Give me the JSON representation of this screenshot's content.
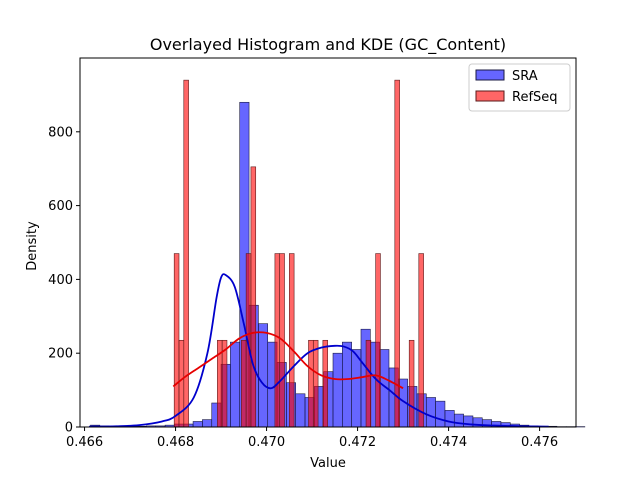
{
  "chart_data": {
    "type": "bar",
    "title": "Overlayed Histogram and KDE (GC_Content)",
    "xlabel": "Value",
    "ylabel": "Density",
    "xlim": [
      0.4659,
      0.4768
    ],
    "ylim": [
      0,
      1000
    ],
    "x_ticks": [
      "0.466",
      "0.468",
      "0.470",
      "0.472",
      "0.474",
      "0.476"
    ],
    "x_tick_values": [
      0.466,
      0.468,
      0.47,
      0.472,
      0.474,
      0.476
    ],
    "y_ticks": [
      "0",
      "200",
      "400",
      "600",
      "800"
    ],
    "y_tick_values": [
      0,
      200,
      400,
      600,
      800
    ],
    "grid": false,
    "legend_position": "top-right",
    "series": [
      {
        "name": "SRA",
        "kind": "histogram",
        "color": "#0000ff",
        "bin_start": 0.46613,
        "bin_width": 0.000205,
        "values": [
          5,
          3,
          2,
          2,
          2,
          2,
          3,
          3,
          5,
          8,
          8,
          15,
          20,
          65,
          170,
          230,
          880,
          330,
          280,
          230,
          175,
          120,
          90,
          80,
          110,
          150,
          200,
          230,
          210,
          265,
          230,
          210,
          160,
          130,
          110,
          90,
          80,
          70,
          45,
          35,
          30,
          25,
          20,
          15,
          12,
          8,
          5,
          3,
          2,
          2,
          1,
          1,
          1
        ]
      },
      {
        "name": "RefSeq",
        "kind": "histogram",
        "color": "#ff0000",
        "bin_start": 0.46797,
        "bin_width": 0.0001054,
        "values": [
          470,
          235,
          940,
          0,
          0,
          0,
          0,
          0,
          0,
          235,
          235,
          0,
          0,
          0,
          235,
          470,
          705,
          0,
          0,
          0,
          0,
          470,
          470,
          0,
          470,
          0,
          0,
          0,
          235,
          235,
          0,
          235,
          0,
          0,
          0,
          0,
          0,
          0,
          0,
          0,
          235,
          0,
          470,
          0,
          0,
          0,
          940,
          0,
          0,
          235,
          0,
          470
        ]
      },
      {
        "name": "SRA KDE",
        "kind": "kde",
        "color": "#0000cc",
        "x": [
          0.4661,
          0.4667,
          0.4672,
          0.4677,
          0.468,
          0.4684,
          0.4687,
          0.4689,
          0.469,
          0.4691,
          0.4693,
          0.4695,
          0.4697,
          0.4699,
          0.4701,
          0.4703,
          0.4706,
          0.4709,
          0.4712,
          0.4715,
          0.4717,
          0.4719,
          0.4721,
          0.4724,
          0.4727,
          0.473,
          0.4735,
          0.474,
          0.4745,
          0.475,
          0.4756,
          0.4762
        ],
        "y": [
          1,
          2,
          5,
          15,
          30,
          80,
          200,
          350,
          405,
          412,
          380,
          280,
          170,
          120,
          105,
          125,
          165,
          200,
          215,
          220,
          218,
          205,
          175,
          130,
          100,
          70,
          35,
          15,
          7,
          4,
          2,
          1
        ]
      },
      {
        "name": "RefSeq KDE",
        "kind": "kde",
        "color": "#e60000",
        "x": [
          0.46795,
          0.4682,
          0.4685,
          0.4688,
          0.4691,
          0.4694,
          0.4697,
          0.47,
          0.4703,
          0.4706,
          0.4709,
          0.4712,
          0.4715,
          0.4718,
          0.4721,
          0.4724,
          0.4727,
          0.473
        ],
        "y": [
          110,
          135,
          160,
          185,
          210,
          240,
          255,
          255,
          240,
          205,
          165,
          140,
          130,
          130,
          135,
          140,
          125,
          105
        ]
      }
    ],
    "legend": [
      "SRA",
      "RefSeq"
    ]
  }
}
